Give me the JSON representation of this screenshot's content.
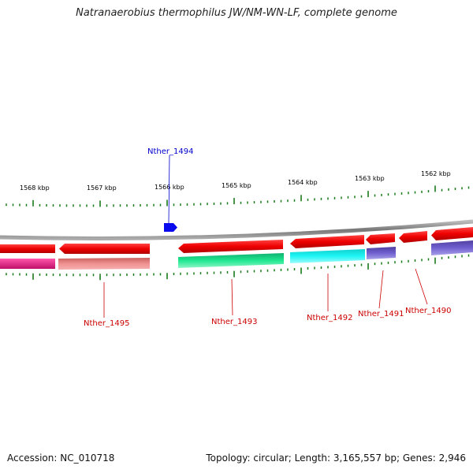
{
  "title": "Natranaerobius thermophilus JW/NM-WN-LF, complete genome",
  "scale": {
    "unit": "kbp",
    "ticks": [
      {
        "label": "1568 kbp"
      },
      {
        "label": "1567 kbp"
      },
      {
        "label": "1566 kbp"
      },
      {
        "label": "1565 kbp"
      },
      {
        "label": "1564 kbp"
      },
      {
        "label": "1563 kbp"
      },
      {
        "label": "1562 kbp"
      }
    ]
  },
  "genes": [
    {
      "label": "Nther_1494",
      "color": "#0000cc"
    },
    {
      "label": "Nther_1495",
      "color": "#cc0000"
    },
    {
      "label": "Nther_1493",
      "color": "#cc0000"
    },
    {
      "label": "Nther_1492",
      "color": "#cc0000"
    },
    {
      "label": "Nther_1491",
      "color": "#cc0000"
    },
    {
      "label": "Nther_1490",
      "color": "#cc0000"
    }
  ],
  "colors": {
    "backbone": "#888888",
    "tick": "#1a7a1a",
    "feature_red": "#ee1111",
    "feature_magenta": "#e0157a",
    "feature_salmon": "#e88080",
    "feature_green": "#11cc7a",
    "feature_cyan": "#11eeee",
    "feature_purple": "#6a5acd",
    "feature_blue": "#0000ee"
  },
  "footer": {
    "accession": "Accession: NC_010718",
    "summary": "Topology: circular; Length: 3,165,557 bp; Genes: 2,946"
  }
}
